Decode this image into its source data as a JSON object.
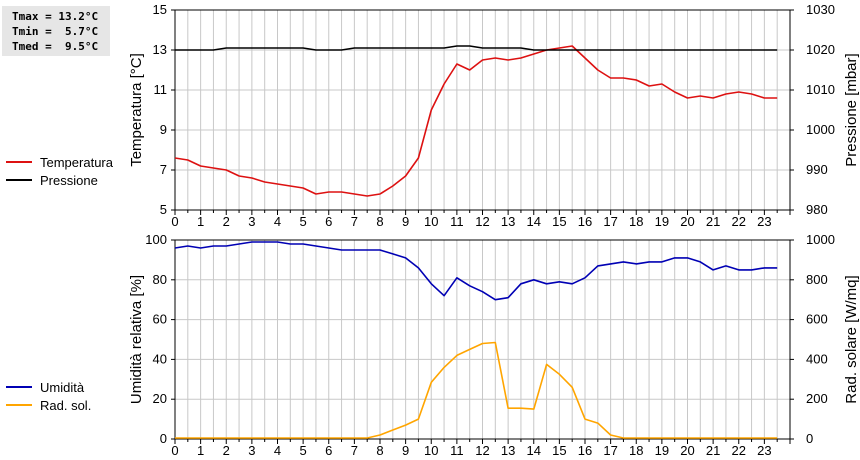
{
  "stats": {
    "tmax": "Tmax = 13.2°C",
    "tmin": "Tmin =  5.7°C",
    "tmed": "Tmed =  9.5°C"
  },
  "colors": {
    "temperatura": "#dd1111",
    "pressione": "#000000",
    "umidita": "#0000b4",
    "rad": "#ffa500",
    "grid": "#c8c8c8"
  },
  "chart_data": [
    {
      "type": "line",
      "xlabel": "",
      "ylabel_left": "Temperatura [°C]",
      "ylabel_right": "Pressione [mbar]",
      "xlim": [
        0,
        24
      ],
      "xticks": [
        "0",
        "1",
        "2",
        "3",
        "4",
        "5",
        "6",
        "7",
        "8",
        "9",
        "10",
        "11",
        "12",
        "13",
        "14",
        "15",
        "16",
        "17",
        "18",
        "19",
        "20",
        "21",
        "22",
        "23"
      ],
      "ylim_left": [
        5,
        15
      ],
      "yticks_left": [
        "5",
        "7",
        "9",
        "11",
        "13",
        "15"
      ],
      "ylim_right": [
        980,
        1030
      ],
      "yticks_right": [
        "980",
        "990",
        "1000",
        "1010",
        "1020",
        "1030"
      ],
      "grid": true,
      "legend": "left",
      "series": [
        {
          "name": "Temperatura",
          "axis": "left",
          "color": "#dd1111",
          "x": [
            0,
            0.5,
            1,
            1.5,
            2,
            2.5,
            3,
            3.5,
            4,
            4.5,
            5,
            5.5,
            6,
            6.5,
            7,
            7.5,
            8,
            8.5,
            9,
            9.5,
            10,
            10.5,
            11,
            11.5,
            12,
            12.5,
            13,
            13.5,
            14,
            14.5,
            15,
            15.5,
            16,
            16.5,
            17,
            17.5,
            18,
            18.5,
            19,
            19.5,
            20,
            20.5,
            21,
            21.5,
            22,
            22.5,
            23,
            23.5
          ],
          "values": [
            7.6,
            7.5,
            7.2,
            7.1,
            7.0,
            6.7,
            6.6,
            6.4,
            6.3,
            6.2,
            6.1,
            5.8,
            5.9,
            5.9,
            5.8,
            5.7,
            5.8,
            6.2,
            6.7,
            7.6,
            10.0,
            11.3,
            12.3,
            12.0,
            12.5,
            12.6,
            12.5,
            12.6,
            12.8,
            13.0,
            13.1,
            13.2,
            12.6,
            12.0,
            11.6,
            11.6,
            11.5,
            11.2,
            11.3,
            10.9,
            10.6,
            10.7,
            10.6,
            10.8,
            10.9,
            10.8,
            10.6,
            10.6
          ]
        },
        {
          "name": "Pressione",
          "axis": "right",
          "color": "#000000",
          "x": [
            0,
            0.5,
            1,
            1.5,
            2,
            2.5,
            3,
            3.5,
            4,
            4.5,
            5,
            5.5,
            6,
            6.5,
            7,
            7.5,
            8,
            8.5,
            9,
            9.5,
            10,
            10.5,
            11,
            11.5,
            12,
            12.5,
            13,
            13.5,
            14,
            14.5,
            15,
            15.5,
            16,
            16.5,
            17,
            17.5,
            18,
            18.5,
            19,
            19.5,
            20,
            20.5,
            21,
            21.5,
            22,
            22.5,
            23,
            23.5
          ],
          "values": [
            1020,
            1020,
            1020,
            1020,
            1020.5,
            1020.5,
            1020.5,
            1020.5,
            1020.5,
            1020.5,
            1020.5,
            1020,
            1020,
            1020,
            1020.5,
            1020.5,
            1020.5,
            1020.5,
            1020.5,
            1020.5,
            1020.5,
            1020.5,
            1021,
            1021,
            1020.5,
            1020.5,
            1020.5,
            1020.5,
            1020,
            1020,
            1020,
            1020,
            1020,
            1020,
            1020,
            1020,
            1020,
            1020,
            1020,
            1020,
            1020,
            1020,
            1020,
            1020,
            1020,
            1020,
            1020,
            1020
          ]
        }
      ]
    },
    {
      "type": "line",
      "xlabel": "",
      "ylabel_left": "Umidità relativa [%]",
      "ylabel_right": "Rad. solare [W/mq]",
      "xlim": [
        0,
        24
      ],
      "xticks": [
        "0",
        "1",
        "2",
        "3",
        "4",
        "5",
        "6",
        "7",
        "8",
        "9",
        "10",
        "11",
        "12",
        "13",
        "14",
        "15",
        "16",
        "17",
        "18",
        "19",
        "20",
        "21",
        "22",
        "23"
      ],
      "ylim_left": [
        0,
        100
      ],
      "yticks_left": [
        "0",
        "20",
        "40",
        "60",
        "80",
        "100"
      ],
      "ylim_right": [
        0,
        1000
      ],
      "yticks_right": [
        "0",
        "200",
        "400",
        "600",
        "800",
        "1000"
      ],
      "grid": true,
      "legend": "left",
      "series": [
        {
          "name": "Umidità",
          "axis": "left",
          "color": "#0000b4",
          "x": [
            0,
            0.5,
            1,
            1.5,
            2,
            2.5,
            3,
            3.5,
            4,
            4.5,
            5,
            5.5,
            6,
            6.5,
            7,
            7.5,
            8,
            8.5,
            9,
            9.5,
            10,
            10.5,
            11,
            11.5,
            12,
            12.5,
            13,
            13.5,
            14,
            14.5,
            15,
            15.5,
            16,
            16.5,
            17,
            17.5,
            18,
            18.5,
            19,
            19.5,
            20,
            20.5,
            21,
            21.5,
            22,
            22.5,
            23,
            23.5
          ],
          "values": [
            96,
            97,
            96,
            97,
            97,
            98,
            99,
            99,
            99,
            98,
            98,
            97,
            96,
            95,
            95,
            95,
            95,
            93,
            91,
            86,
            78,
            72,
            81,
            77,
            74,
            70,
            71,
            78,
            80,
            78,
            79,
            78,
            81,
            87,
            88,
            89,
            88,
            89,
            89,
            91,
            91,
            89,
            85,
            87,
            85,
            85,
            86,
            86
          ]
        },
        {
          "name": "Rad. sol.",
          "axis": "right",
          "color": "#ffa500",
          "x": [
            0,
            0.5,
            1,
            1.5,
            2,
            2.5,
            3,
            3.5,
            4,
            4.5,
            5,
            5.5,
            6,
            6.5,
            7,
            7.5,
            8,
            8.5,
            9,
            9.5,
            10,
            10.5,
            11,
            11.5,
            12,
            12.5,
            13,
            13.5,
            14,
            14.5,
            15,
            15.5,
            16,
            16.5,
            17,
            17.5,
            18,
            18.5,
            19,
            19.5,
            20,
            20.5,
            21,
            21.5,
            22,
            22.5,
            23,
            23.5
          ],
          "values": [
            5,
            5,
            5,
            5,
            5,
            5,
            5,
            5,
            5,
            5,
            5,
            5,
            5,
            5,
            5,
            5,
            20,
            45,
            70,
            100,
            285,
            360,
            420,
            450,
            480,
            485,
            155,
            155,
            150,
            375,
            325,
            260,
            100,
            80,
            20,
            5,
            5,
            5,
            5,
            5,
            5,
            5,
            5,
            5,
            5,
            5,
            5,
            5
          ]
        }
      ]
    }
  ]
}
